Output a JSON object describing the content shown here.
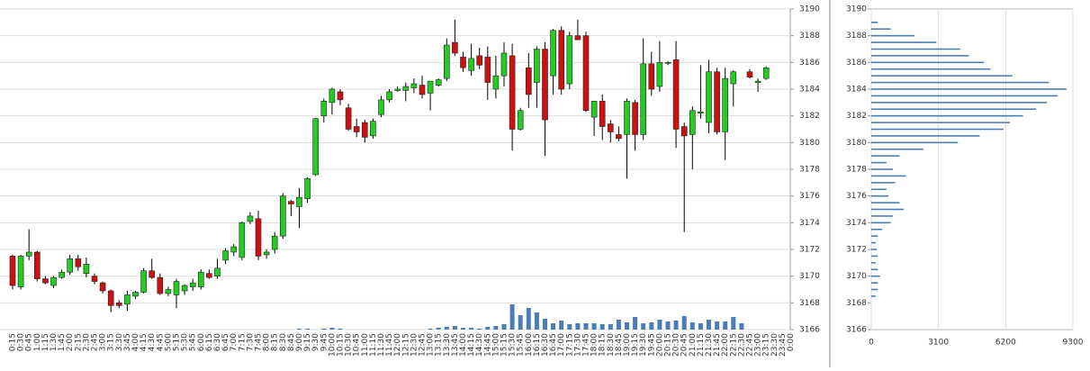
{
  "chart_data": {
    "type": "candlestick",
    "categories": [
      "0:15",
      "0:30",
      "0:45",
      "1:00",
      "1:15",
      "1:30",
      "1:45",
      "2:00",
      "2:15",
      "2:30",
      "2:45",
      "3:00",
      "3:15",
      "3:30",
      "3:45",
      "4:00",
      "4:15",
      "4:30",
      "4:45",
      "5:00",
      "5:15",
      "5:30",
      "5:45",
      "6:00",
      "6:15",
      "6:30",
      "6:45",
      "7:00",
      "7:15",
      "7:30",
      "7:45",
      "8:00",
      "8:15",
      "8:30",
      "8:45",
      "9:00",
      "9:15",
      "9:30",
      "9:45",
      "10:00",
      "10:15",
      "10:30",
      "10:45",
      "11:00",
      "11:15",
      "11:30",
      "11:45",
      "12:00",
      "12:15",
      "12:30",
      "12:45",
      "13:00",
      "13:15",
      "13:30",
      "13:45",
      "14:00",
      "14:15",
      "14:30",
      "14:45",
      "15:00",
      "15:15",
      "15:30",
      "15:45",
      "16:00",
      "16:15",
      "16:30",
      "16:45",
      "17:00",
      "17:15",
      "17:30",
      "17:45",
      "18:00",
      "18:15",
      "18:30",
      "18:45",
      "19:00",
      "19:15",
      "19:30",
      "19:45",
      "20:00",
      "20:15",
      "20:30",
      "20:45",
      "21:00",
      "21:15",
      "21:30",
      "21:45",
      "22:00",
      "22:15",
      "22:30",
      "22:45",
      "23:00",
      "23:15",
      "23:30",
      "23:45",
      "0:00"
    ],
    "open": [
      3171.5,
      3169.2,
      3171.5,
      3171.8,
      3169.8,
      3169.3,
      3169.9,
      3170.3,
      3171.3,
      3170.2,
      3170,
      3169.5,
      3168.9,
      3168,
      3167.9,
      3168.5,
      3168.8,
      3170.4,
      3169.9,
      3168.7,
      3168.6,
      3168.9,
      3169.2,
      3169.2,
      3170.2,
      3170,
      3171.2,
      3171.8,
      3171.4,
      3174.1,
      3174.3,
      3171.6,
      3172,
      3173,
      3175.6,
      3175.2,
      3175.8,
      3177.6,
      3182,
      3183,
      3183.8,
      3182.6,
      3181.2,
      3181.5,
      3180.5,
      3182.1,
      3183.2,
      3183.9,
      3183.9,
      3184.1,
      3184.3,
      3183.7,
      3184.3,
      3184.8,
      3187.5,
      3186.4,
      3185.4,
      3186.5,
      3186.4,
      3184,
      3185,
      3186.5,
      3181,
      3185.6,
      3184.5,
      3187,
      3185,
      3188.4,
      3184.4,
      3188,
      3188,
      3181.9,
      3183.1,
      3181.4,
      3180.6,
      3180.6,
      3183,
      3180.6,
      3185.9,
      3184.2,
      3186,
      3186.2,
      3181.2,
      3180.6,
      3182.2,
      3181.5,
      3185.3,
      3180.8,
      3184.4,
      null,
      3185.3,
      3184.5,
      3184.8,
      null,
      null,
      null
    ],
    "high": [
      3171.6,
      3171.6,
      3173.5,
      3171.9,
      3170,
      3170,
      3170.5,
      3171.6,
      3171.6,
      3171.4,
      3170.2,
      3169.6,
      3169,
      3168.2,
      3168.9,
      3168.9,
      3170.6,
      3171.3,
      3170.2,
      3169.2,
      3169.8,
      3169.4,
      3169.8,
      3170.5,
      3170.5,
      3171.3,
      3172.1,
      3172.4,
      3174.1,
      3174.8,
      3174.9,
      3172,
      3173.3,
      3176.2,
      3175.7,
      3176.6,
      3177.4,
      3181.8,
      3183.3,
      3184.1,
      3184,
      3182.9,
      3181.8,
      3181.7,
      3181.8,
      3183.5,
      3184,
      3184.2,
      3184.5,
      3184.8,
      3185,
      3184.6,
      3184.8,
      3187.8,
      3189.2,
      3186.8,
      3187.4,
      3187.1,
      3187.2,
      3186.5,
      3187.5,
      3187.4,
      3182.6,
      3186.7,
      3187.2,
      3187.5,
      3188.5,
      3188.7,
      3188.3,
      3189.2,
      3188.3,
      3183.1,
      3183.6,
      3181.7,
      3181.2,
      3183.3,
      3183.2,
      3187.8,
      3186.8,
      3187.6,
      3186.1,
      3187.6,
      3181.5,
      3182.7,
      3185.8,
      3186.2,
      3185.6,
      3185.6,
      3185.4,
      null,
      3185.5,
      3184.8,
      3185.7,
      null,
      null,
      null
    ],
    "low": [
      3169,
      3169,
      3171.2,
      3169.6,
      3169.4,
      3169.1,
      3169.8,
      3170.1,
      3170.4,
      3169.9,
      3169.4,
      3168.7,
      3167.3,
      3167.6,
      3167.4,
      3168.3,
      3168.7,
      3169.8,
      3168.6,
      3168.5,
      3167.6,
      3168.6,
      3168.9,
      3169,
      3169.8,
      3169.8,
      3170.9,
      3171.5,
      3171.2,
      3173.9,
      3171.2,
      3171.3,
      3171.7,
      3172.8,
      3174.5,
      3173.6,
      3175.5,
      3177.5,
      3181.5,
      3182.1,
      3182.8,
      3180.9,
      3180.4,
      3180,
      3180.3,
      3181.9,
      3183,
      3183.8,
      3183.1,
      3183.7,
      3183.3,
      3182.4,
      3184.2,
      3184.6,
      3186.5,
      3185.3,
      3185,
      3185.5,
      3183.2,
      3183.3,
      3184.2,
      3179.4,
      3180.9,
      3182.6,
      3182.6,
      3179,
      3183.6,
      3183.6,
      3184,
      3187.7,
      3182.3,
      3180.5,
      3180.2,
      3180,
      3180.1,
      3177.3,
      3179.4,
      3180.2,
      3183.5,
      3183.8,
      3185.8,
      3179.6,
      3173.3,
      3178,
      3181.8,
      3180.7,
      3180.6,
      3178.7,
      3182.7,
      null,
      3184.8,
      3183.8,
      3184.7,
      null,
      null,
      null
    ],
    "close": [
      3169.3,
      3171.5,
      3171.8,
      3169.8,
      3169.5,
      3169.9,
      3170.3,
      3171.3,
      3170.7,
      3170.9,
      3169.6,
      3168.9,
      3167.8,
      3167.8,
      3168.6,
      3168.8,
      3170.4,
      3169.9,
      3168.7,
      3169,
      3169.6,
      3169.3,
      3169.5,
      3170.3,
      3169.9,
      3170.6,
      3171.9,
      3172.2,
      3174,
      3174.5,
      3171.5,
      3171.8,
      3173,
      3176,
      3175.4,
      3175.9,
      3177.3,
      3181.8,
      3183.1,
      3184,
      3183.2,
      3181,
      3180.8,
      3180.4,
      3181.6,
      3183.2,
      3183.8,
      3184,
      3184.2,
      3184.4,
      3183.6,
      3184.6,
      3184.7,
      3187.3,
      3186.7,
      3185.6,
      3186.3,
      3185.8,
      3184.5,
      3185,
      3186.7,
      3181,
      3182.4,
      3183.6,
      3187,
      3181.7,
      3188.4,
      3184,
      3188,
      3187.7,
      3182.4,
      3183.1,
      3181.2,
      3180.8,
      3180.3,
      3183.1,
      3180.6,
      3185.9,
      3184,
      3186,
      3186,
      3181,
      3180.5,
      3182.4,
      3182.3,
      3185.3,
      3180.8,
      3184.8,
      3185.3,
      null,
      3184.9,
      3184.6,
      3185.6,
      null,
      null,
      null
    ],
    "volume": [
      0,
      0,
      0,
      0,
      0,
      0,
      0,
      0,
      0,
      0,
      0,
      0,
      0,
      0,
      0,
      0,
      0,
      0,
      0,
      0,
      0,
      0,
      0,
      0,
      0,
      0,
      0,
      0,
      0,
      0,
      0,
      0,
      0,
      0,
      0,
      1,
      1,
      0,
      1,
      2,
      1,
      0,
      0,
      0,
      0,
      0,
      0,
      0,
      0,
      0,
      0,
      1,
      2,
      3,
      4,
      2,
      2,
      1,
      3,
      4,
      6,
      28,
      16,
      24,
      19,
      12,
      7,
      10,
      6,
      7,
      7,
      7,
      6,
      6,
      11,
      8,
      14,
      7,
      8,
      11,
      9,
      10,
      15,
      8,
      7,
      11,
      9,
      9,
      14,
      7,
      0,
      0,
      0,
      0,
      0,
      0
    ],
    "vlim": [
      0,
      100
    ],
    "up_color": "#22cc22",
    "down_color": "#cc1111",
    "volume_color": "#4a7db5",
    "ylim": [
      3166,
      3190
    ],
    "yticks": [
      3166,
      3168,
      3170,
      3172,
      3174,
      3176,
      3178,
      3180,
      3182,
      3184,
      3186,
      3188,
      3190
    ],
    "grid": true,
    "profile": {
      "prices": [
        3168.5,
        3169,
        3169.5,
        3170,
        3170.5,
        3171,
        3171.5,
        3172,
        3172.5,
        3173,
        3173.5,
        3174,
        3174.5,
        3175,
        3175.5,
        3176,
        3176.5,
        3177,
        3177.5,
        3178,
        3178.5,
        3179,
        3179.5,
        3180,
        3180.5,
        3181,
        3181.5,
        3182,
        3182.5,
        3183,
        3183.5,
        3184,
        3184.5,
        3185,
        3185.5,
        3186,
        3186.5,
        3187,
        3187.5,
        3188,
        3188.5,
        3189
      ],
      "values": [
        200,
        300,
        300,
        400,
        300,
        200,
        300,
        250,
        200,
        300,
        500,
        900,
        1000,
        1500,
        1300,
        800,
        700,
        1100,
        1600,
        1000,
        700,
        1300,
        2400,
        4000,
        5000,
        6100,
        6400,
        7000,
        7600,
        8100,
        8600,
        9000,
        8200,
        6500,
        5500,
        5200,
        4500,
        4100,
        3000,
        2000,
        900,
        300
      ],
      "xlim": [
        0,
        9300
      ],
      "xticks": [
        0,
        3100,
        6200,
        9300
      ],
      "color": "#4a7db5"
    }
  }
}
